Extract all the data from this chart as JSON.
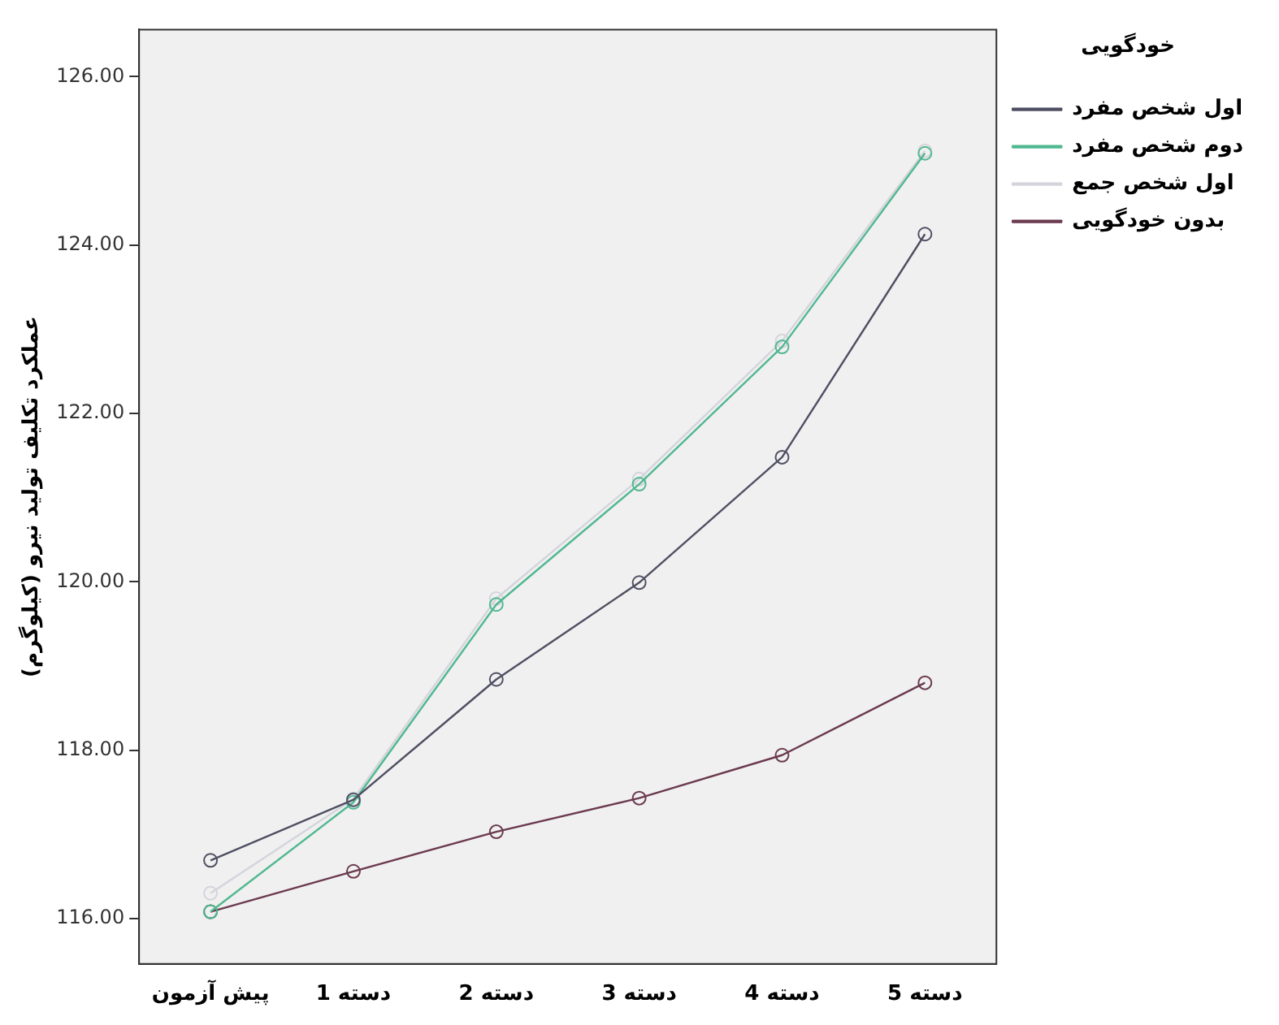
{
  "chart_data": {
    "type": "line",
    "ylabel": "عملکرد تکلیف تولید نیرو (کیلوگرم)",
    "legend_title": "خودگویی",
    "categories": [
      "پیش آزمون",
      "دسته 1",
      "دسته 2",
      "دسته 3",
      "دسته 4",
      "دسته 5"
    ],
    "series": [
      {
        "name": "اول شخص مفرد",
        "color": "#4f4f63",
        "values": [
          116.69,
          117.41,
          118.84,
          119.99,
          121.48,
          124.13
        ]
      },
      {
        "name": "دوم شخص مفرد",
        "color": "#50b890",
        "values": [
          116.08,
          117.38,
          119.73,
          121.16,
          122.79,
          125.09
        ]
      },
      {
        "name": "اول شخص جمع",
        "color": "#d4d4dc",
        "values": [
          116.3,
          117.42,
          119.8,
          121.22,
          122.86,
          125.12
        ]
      },
      {
        "name": "بدون خودگویی",
        "color": "#6b3a4f",
        "values": [
          116.08,
          116.56,
          117.03,
          117.43,
          117.94,
          118.8
        ]
      }
    ],
    "ylim": [
      115.46,
      126.56
    ],
    "yticks": [
      {
        "value": 116,
        "label": "116.00"
      },
      {
        "value": 118,
        "label": "118.00"
      },
      {
        "value": 120,
        "label": "120.00"
      },
      {
        "value": 122,
        "label": "122.00"
      },
      {
        "value": 124,
        "label": "124.00"
      },
      {
        "value": 126,
        "label": "126.00"
      }
    ],
    "grid": false,
    "legend": "top right",
    "marker": "circle",
    "line_style": "solid"
  }
}
